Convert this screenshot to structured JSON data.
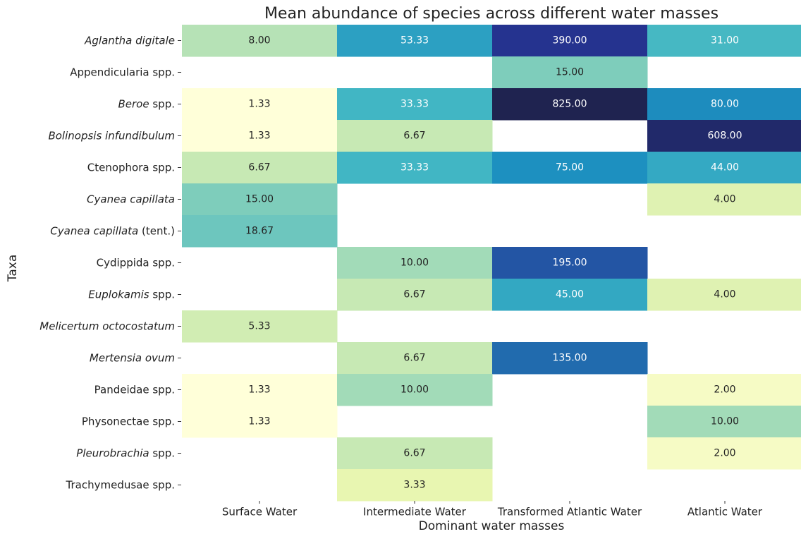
{
  "chart_data": {
    "type": "heatmap",
    "title": "Mean abundance of species across different water masses",
    "xlabel": "Dominant water masses",
    "ylabel": "Taxa",
    "columns": [
      "Surface Water",
      "Intermediate Water",
      "Transformed Atlantic Water",
      "Atlantic Water"
    ],
    "rows": [
      "Aglantha digitale",
      "Appendicularia spp.",
      "Beroe spp.",
      "Bolinopsis infundibulum",
      "Ctenophora spp.",
      "Cyanea capillata",
      "Cyanea capillata (tent.)",
      "Cydippida spp.",
      "Euplokamis spp.",
      "Melicertum octocostatum",
      "Mertensia ovum",
      "Pandeidae spp.",
      "Physonectae spp.",
      "Pleurobrachia spp.",
      "Trachymedusae spp."
    ],
    "row_italic_words": [
      2,
      0,
      1,
      2,
      0,
      2,
      2,
      0,
      1,
      2,
      2,
      0,
      0,
      1,
      0
    ],
    "values": [
      [
        8,
        53.33,
        390,
        31
      ],
      [
        null,
        null,
        15,
        null
      ],
      [
        1.33,
        33.33,
        825,
        80
      ],
      [
        1.33,
        6.67,
        null,
        608
      ],
      [
        6.67,
        33.33,
        75,
        44
      ],
      [
        15,
        null,
        null,
        4
      ],
      [
        18.67,
        null,
        null,
        null
      ],
      [
        null,
        10,
        195,
        null
      ],
      [
        null,
        6.67,
        45,
        4
      ],
      [
        5.33,
        null,
        null,
        null
      ],
      [
        null,
        6.67,
        135,
        null
      ],
      [
        1.33,
        10,
        null,
        2
      ],
      [
        1.33,
        null,
        null,
        10
      ],
      [
        null,
        6.67,
        null,
        2
      ],
      [
        null,
        3.33,
        null,
        null
      ]
    ],
    "value_labels": [
      [
        "8.00",
        "53.33",
        "390.00",
        "31.00"
      ],
      [
        null,
        null,
        "15.00",
        null
      ],
      [
        "1.33",
        "33.33",
        "825.00",
        "80.00"
      ],
      [
        "1.33",
        "6.67",
        null,
        "608.00"
      ],
      [
        "6.67",
        "33.33",
        "75.00",
        "44.00"
      ],
      [
        "15.00",
        null,
        null,
        "4.00"
      ],
      [
        "18.67",
        null,
        null,
        null
      ],
      [
        null,
        "10.00",
        "195.00",
        null
      ],
      [
        null,
        "6.67",
        "45.00",
        "4.00"
      ],
      [
        "5.33",
        null,
        null,
        null
      ],
      [
        null,
        "6.67",
        "135.00",
        null
      ],
      [
        "1.33",
        "10.00",
        null,
        "2.00"
      ],
      [
        "1.33",
        null,
        null,
        "10.00"
      ],
      [
        null,
        "6.67",
        null,
        "2.00"
      ],
      [
        null,
        "3.33",
        null,
        null
      ]
    ],
    "colormap": [
      "#ffffd9",
      "#edf8b1",
      "#c7e9b4",
      "#7fcdbb",
      "#41b6c4",
      "#1d91c0",
      "#225ea8",
      "#253494",
      "#1f2350"
    ],
    "color_scale": "log",
    "clim": [
      1.33,
      825
    ]
  }
}
